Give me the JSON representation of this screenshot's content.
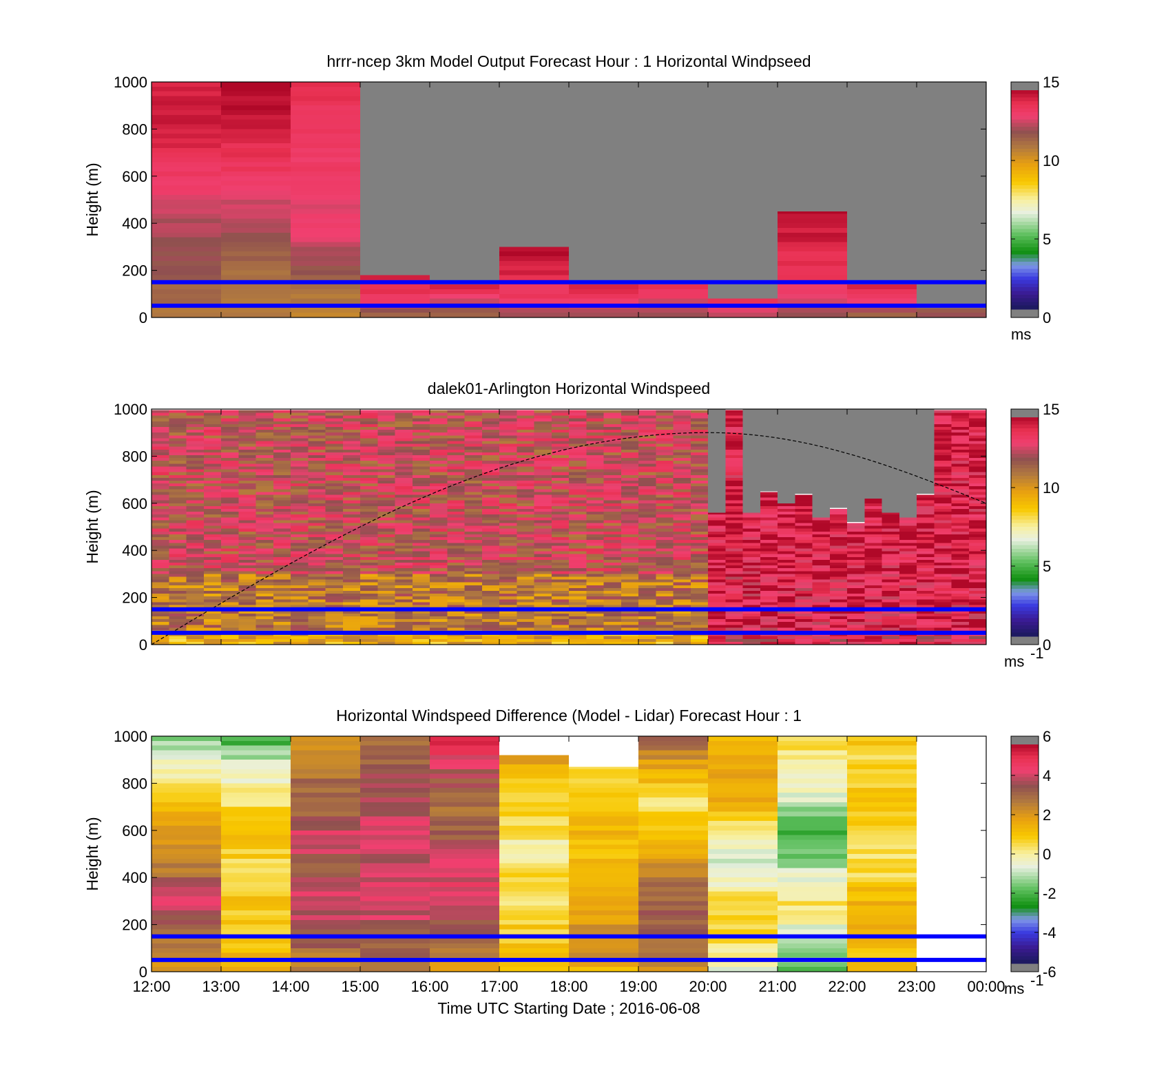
{
  "chart_data": [
    {
      "type": "heatmap",
      "title": "hrrr-ncep 3km Model Output   Forecast Hour : 1 Horizontal Windpseed",
      "ylabel": "Height (m)",
      "ylim": [
        0,
        1000
      ],
      "yticks": [
        0,
        200,
        400,
        600,
        800,
        1000
      ],
      "x": [
        "12:00",
        "13:00",
        "14:00",
        "15:00",
        "16:00",
        "17:00",
        "18:00",
        "19:00",
        "20:00",
        "21:00",
        "22:00",
        "23:00"
      ],
      "xlim": [
        "12:00",
        "00:00"
      ],
      "colorbar": {
        "range": [
          0,
          15
        ],
        "ticks": [
          0,
          5,
          10,
          15
        ],
        "unit": "ms"
      },
      "reference_lines_m": [
        150,
        50
      ],
      "hourly_valid_top_m": [
        1000,
        1000,
        1000,
        180,
        140,
        300,
        140,
        140,
        80,
        450,
        140,
        40
      ],
      "hourly_bottom_profile_ms": [
        [
          11.0,
          12.0,
          12.5,
          13.5,
          14.5,
          14.5
        ],
        [
          11.0,
          11.5,
          12.5,
          13.5,
          14.5,
          15.0
        ],
        [
          10.5,
          13.0,
          13.5,
          14.0
        ],
        [
          11.0,
          13.5,
          14.0,
          14.5
        ],
        [
          11.5,
          13.0,
          14.5
        ],
        [
          12.0,
          13.5,
          14.0,
          14.5,
          15.0
        ],
        [
          12.0,
          13.5,
          14.5
        ],
        [
          12.0,
          13.0,
          14.5
        ],
        [
          12.5,
          14.0
        ],
        [
          12.0,
          13.5,
          14.0,
          14.5,
          15.0
        ],
        [
          11.5,
          13.0,
          14.5
        ],
        [
          12.0
        ]
      ],
      "color_ranges": {
        "reference_line": "#0000ff",
        "no_data": "#808080"
      }
    },
    {
      "type": "heatmap",
      "title": "dalek01-Arlington  Horizontal Windspeed",
      "ylabel": "Height (m)",
      "ylim": [
        0,
        1000
      ],
      "yticks": [
        0,
        200,
        400,
        600,
        800,
        1000
      ],
      "xlim": [
        "12:00",
        "00:00"
      ],
      "colorbar": {
        "range": [
          0,
          15
        ],
        "ticks": [
          0,
          5,
          10,
          15
        ],
        "unit": "ms",
        "unit_sup": "-1"
      },
      "reference_lines_m": [
        150,
        50
      ],
      "boundary_layer_curve": {
        "from": [
          "12:00",
          0
        ],
        "peak": [
          "20:00",
          900
        ],
        "to": [
          "00:00",
          600
        ]
      },
      "profile_interval_minutes": 15,
      "profile_valid_top_m": [
        1000,
        1000,
        1000,
        1000,
        1000,
        1000,
        1000,
        1000,
        1000,
        1000,
        1000,
        1000,
        1000,
        1000,
        1000,
        1000,
        1000,
        1000,
        1000,
        1000,
        1000,
        1000,
        1000,
        1000,
        1000,
        1000,
        1000,
        1000,
        1000,
        1000,
        1000,
        1000,
        560,
        1000,
        560,
        650,
        600,
        640,
        540,
        580,
        520,
        620,
        560,
        540,
        640,
        1000,
        1000,
        1000,
        1000,
        1000
      ],
      "color_ranges": {
        "reference_line": "#0000ff",
        "no_data": "#808080",
        "boundary_layer": "#000000"
      }
    },
    {
      "type": "heatmap",
      "title": "Horizontal Windspeed Difference (Model - Lidar) Forecast Hour : 1",
      "ylabel": "Height (m)",
      "xlabel": "Time UTC  Starting Date ; 2016-06-08",
      "ylim": [
        0,
        1000
      ],
      "yticks": [
        0,
        200,
        400,
        600,
        800,
        1000
      ],
      "x": [
        "12:00",
        "13:00",
        "14:00",
        "15:00",
        "16:00",
        "17:00",
        "18:00",
        "19:00",
        "20:00",
        "21:00",
        "22:00",
        "23:00"
      ],
      "xticks": [
        "12:00",
        "13:00",
        "14:00",
        "15:00",
        "16:00",
        "17:00",
        "18:00",
        "19:00",
        "20:00",
        "21:00",
        "22:00",
        "23:00",
        "00:00"
      ],
      "xlim": [
        "12:00",
        "00:00"
      ],
      "colorbar": {
        "range": [
          -6,
          6
        ],
        "ticks": [
          -6,
          -4,
          -2,
          0,
          2,
          4,
          6
        ],
        "unit": "ms",
        "unit_sup": "-1"
      },
      "reference_lines_m": [
        150,
        50
      ],
      "hourly_valid_top_m": [
        1000,
        1000,
        1000,
        1000,
        1000,
        920,
        870,
        1000,
        1000,
        1000,
        1000,
        0
      ],
      "hourly_profile_difference_ms": [
        [
          2.0,
          3.0,
          4.5,
          3.0,
          2.0,
          1.0,
          0.0,
          -1.5
        ],
        [
          1.5,
          1.0,
          1.0,
          0.5,
          1.0,
          0.5,
          -0.5,
          -2.5
        ],
        [
          2.5,
          3.5,
          4.5,
          3.5,
          4.5,
          3.0,
          3.0,
          2.0
        ],
        [
          3.0,
          3.5,
          4.5,
          4.0,
          4.5,
          4.0,
          3.5,
          3.0
        ],
        [
          2.0,
          3.0,
          4.5,
          4.5,
          3.5,
          3.0,
          4.0,
          6.0
        ],
        [
          1.0,
          1.0,
          0.5,
          0.5,
          0.0,
          0.5,
          1.0,
          2.0
        ],
        [
          1.5,
          2.5,
          2.0,
          1.5,
          1.0,
          1.5,
          1.0,
          1.0
        ],
        [
          2.0,
          3.5,
          3.5,
          2.5,
          1.0,
          0.5,
          1.5,
          3.5
        ],
        [
          -0.5,
          0.5,
          1.0,
          -1.0,
          0.0,
          1.5,
          2.0,
          1.0
        ],
        [
          -2.0,
          -1.0,
          0.5,
          -1.0,
          -2.5,
          -1.0,
          0.0,
          0.5
        ],
        [
          1.0,
          1.5,
          1.5,
          0.5,
          0.5,
          1.0,
          0.5,
          1.0
        ],
        []
      ],
      "color_ranges": {
        "reference_line": "#0000ff"
      }
    }
  ]
}
